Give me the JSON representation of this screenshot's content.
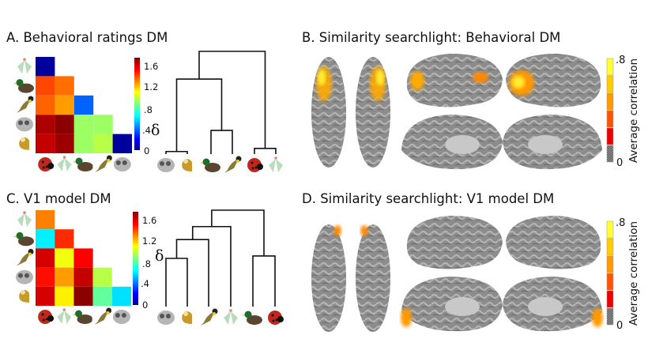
{
  "panels": {
    "a": {
      "title": "A. Behavioral ratings DM"
    },
    "b": {
      "title": "B. Similarity searchlight: Behavioral DM"
    },
    "c": {
      "title": "C. V1 model DM"
    },
    "d": {
      "title": "D. Similarity searchlight: V1 model DM"
    }
  },
  "dm_colorbar": {
    "ticks": [
      "1.6",
      "1.2",
      ".8",
      ".4",
      "0"
    ],
    "symbol": "δ",
    "range": [
      0,
      1.8
    ]
  },
  "corr_colorbar": {
    "top": ".8",
    "bottom": "0",
    "label": "Average correlation",
    "colors": [
      "#ffff33",
      "#ffcc00",
      "#ff9900",
      "#ff5500",
      "#ee0000",
      "#777777"
    ]
  },
  "chart_data": [
    {
      "type": "heatmap",
      "title": "A. Behavioral ratings DM",
      "row_labels": [
        "moth",
        "duck",
        "bird",
        "lemur",
        "monkey"
      ],
      "col_labels": [
        "ladybug",
        "moth",
        "duck",
        "bird",
        "lemur"
      ],
      "values": [
        [
          0.05
        ],
        [
          1.45,
          1.38
        ],
        [
          1.4,
          1.3,
          0.4
        ],
        [
          1.72,
          1.78,
          0.95,
          0.95
        ],
        [
          1.68,
          1.75,
          0.95,
          1.0,
          0.05
        ]
      ],
      "dendrogram": {
        "leaves": [
          "lemur",
          "monkey",
          "duck",
          "bird",
          "ladybug",
          "moth"
        ],
        "merges": [
          [
            0,
            1,
            0.05
          ],
          [
            2,
            3,
            0.46
          ],
          [
            4,
            5,
            0.11
          ],
          [
            6,
            7,
            1.46
          ],
          [
            9,
            8,
            2.0
          ]
        ]
      }
    },
    {
      "type": "heatmap",
      "title": "C. V1 model DM",
      "row_labels": [
        "moth",
        "duck",
        "bird",
        "lemur",
        "monkey"
      ],
      "col_labels": [
        "ladybug",
        "moth",
        "duck",
        "bird",
        "lemur"
      ],
      "values": [
        [
          1.35
        ],
        [
          0.65,
          1.5
        ],
        [
          1.65,
          1.1,
          1.58
        ],
        [
          1.55,
          1.3,
          1.68,
          1.0
        ],
        [
          1.65,
          1.15,
          1.78,
          0.85,
          0.62
        ]
      ],
      "dendrogram": {
        "leaves": [
          "lemur",
          "monkey",
          "bird",
          "moth",
          "duck",
          "ladybug"
        ],
        "merges": [
          [
            0,
            1,
            1.0
          ],
          [
            6,
            2,
            1.39
          ],
          [
            7,
            3,
            1.66
          ],
          [
            4,
            5,
            1.05
          ],
          [
            8,
            9,
            2.0
          ]
        ]
      }
    }
  ]
}
